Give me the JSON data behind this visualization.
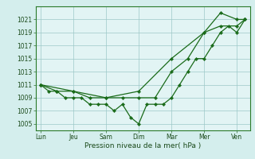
{
  "xlabel": "Pression niveau de la mer( hPa )",
  "background_color": "#d4eeed",
  "plot_background": "#e2f4f4",
  "grid_color": "#9dc8c8",
  "line_color": "#1a6b1a",
  "marker_color": "#1a6b1a",
  "ylim": [
    1004,
    1023
  ],
  "yticks": [
    1005,
    1007,
    1009,
    1011,
    1013,
    1015,
    1017,
    1019,
    1021
  ],
  "xtick_labels": [
    "Lun",
    "Jeu",
    "Sam",
    "Dim",
    "Mar",
    "Mer",
    "Ven"
  ],
  "xtick_positions": [
    0,
    1,
    2,
    3,
    4,
    5,
    6
  ],
  "xlim": [
    -0.15,
    6.4
  ],
  "s1x": [
    0,
    0.25,
    0.5,
    0.75,
    1.0,
    1.25,
    1.5,
    1.75,
    2.0,
    2.25,
    2.5,
    2.75,
    3.0,
    3.25,
    3.5,
    3.75,
    4.0,
    4.25,
    4.5,
    4.75,
    5.0,
    5.25,
    5.5,
    5.75,
    6.0,
    6.25
  ],
  "s1y": [
    1011,
    1010,
    1010,
    1009,
    1009,
    1009,
    1008,
    1008,
    1008,
    1007,
    1008,
    1006,
    1005,
    1008,
    1008,
    1008,
    1009,
    1011,
    1013,
    1015,
    1015,
    1017,
    1019,
    1020,
    1019,
    1021
  ],
  "s2x": [
    0,
    0.5,
    1.0,
    1.5,
    2.0,
    2.5,
    3.0,
    3.5,
    4.0,
    4.5,
    5.0,
    5.5,
    6.0,
    6.25
  ],
  "s2y": [
    1011,
    1010,
    1010,
    1009,
    1009,
    1009,
    1009,
    1009,
    1013,
    1015,
    1019,
    1020,
    1020,
    1021
  ],
  "s3x": [
    0,
    1.0,
    2.0,
    3.0,
    4.0,
    5.0,
    5.5,
    6.0,
    6.25
  ],
  "s3y": [
    1011,
    1010,
    1009,
    1010,
    1015,
    1019,
    1022,
    1021,
    1021
  ],
  "ylabel_fontsize": 6.0,
  "xlabel_fontsize": 6.5,
  "ytick_fontsize": 5.5,
  "xtick_fontsize": 5.5
}
